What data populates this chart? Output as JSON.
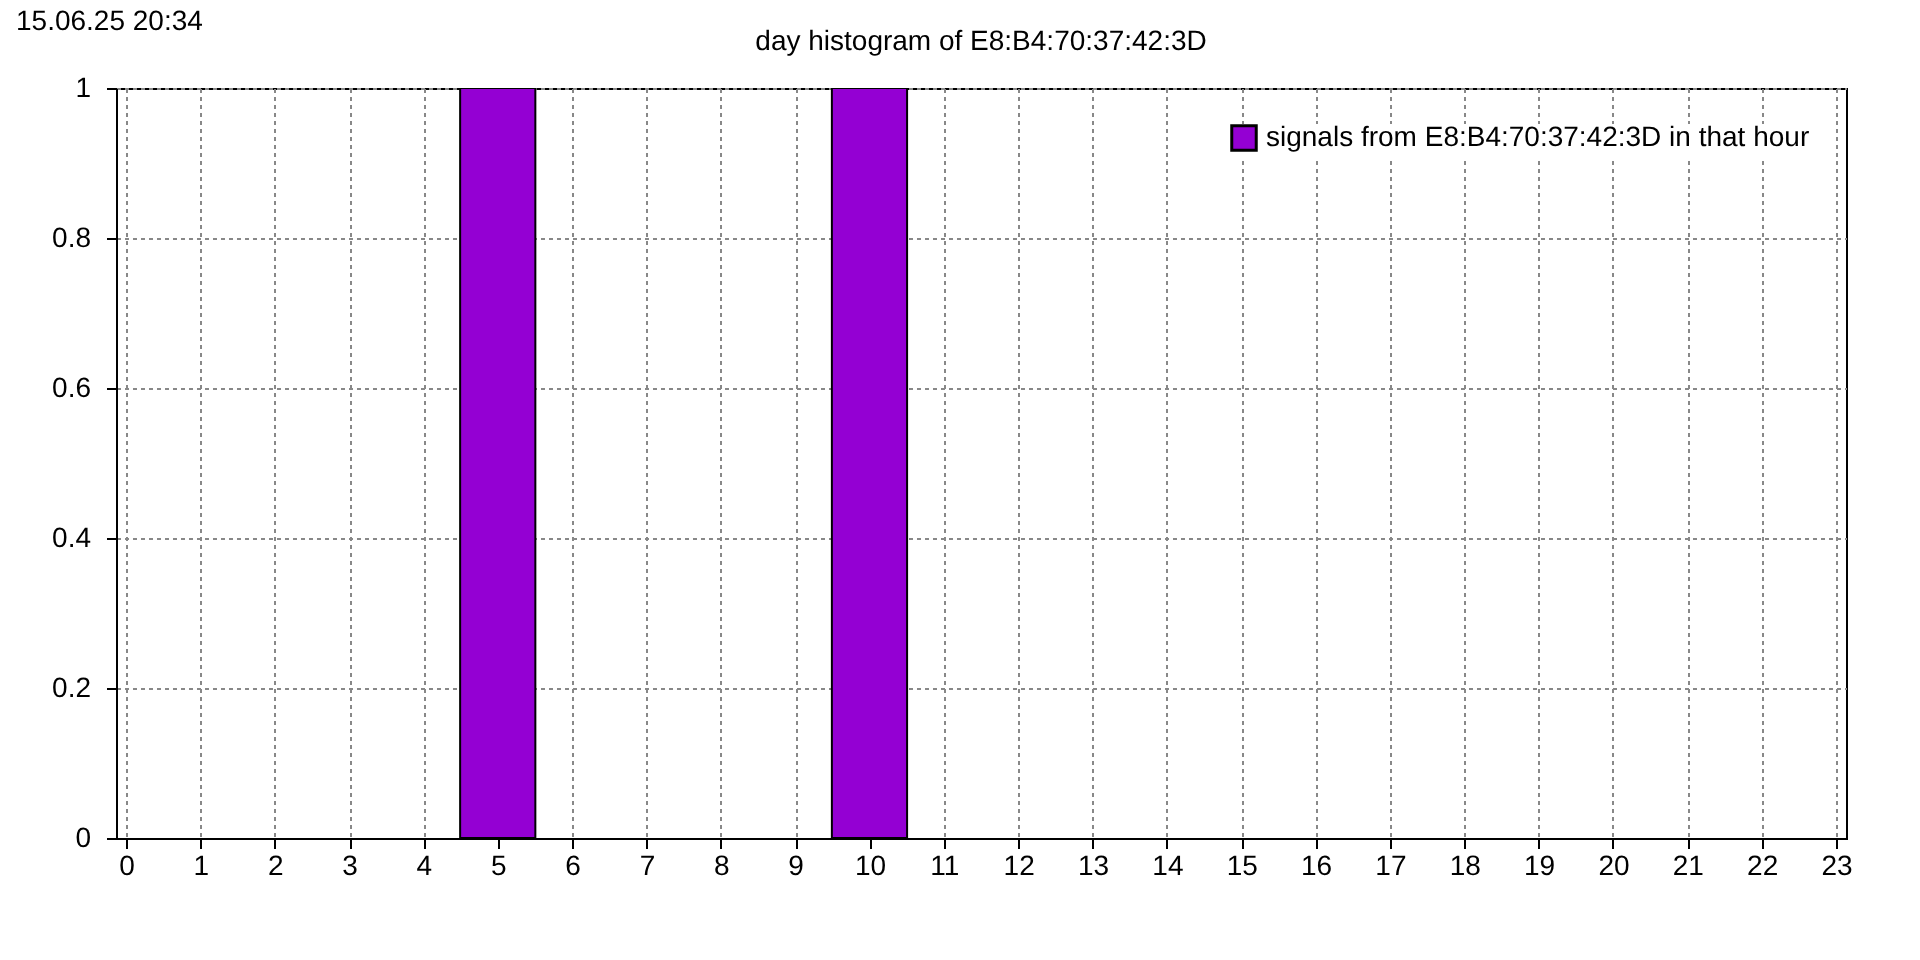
{
  "chart_data": {
    "type": "bar",
    "title": "day histogram of E8:B4:70:37:42:3D",
    "annotations": [
      "15.06.25 20:34"
    ],
    "x": [
      0,
      1,
      2,
      3,
      4,
      5,
      6,
      7,
      8,
      9,
      10,
      11,
      12,
      13,
      14,
      15,
      16,
      17,
      18,
      19,
      20,
      21,
      22,
      23
    ],
    "series": [
      {
        "name": "signals from E8:B4:70:37:42:3D in that hour",
        "color": "#9400d3",
        "values": [
          0,
          0,
          0,
          0,
          0,
          1,
          0,
          0,
          0,
          0,
          1,
          0,
          0,
          0,
          0,
          0,
          0,
          0,
          0,
          0,
          0,
          0,
          0,
          0
        ]
      }
    ],
    "xlim": [
      0,
      23
    ],
    "xticks": [
      0,
      1,
      2,
      3,
      4,
      5,
      6,
      7,
      8,
      9,
      10,
      11,
      12,
      13,
      14,
      15,
      16,
      17,
      18,
      19,
      20,
      21,
      22,
      23
    ],
    "ylim": [
      0,
      1
    ],
    "yticks": [
      0,
      0.2,
      0.4,
      0.6,
      0.8,
      1
    ],
    "grid": true,
    "legend": "top right"
  }
}
